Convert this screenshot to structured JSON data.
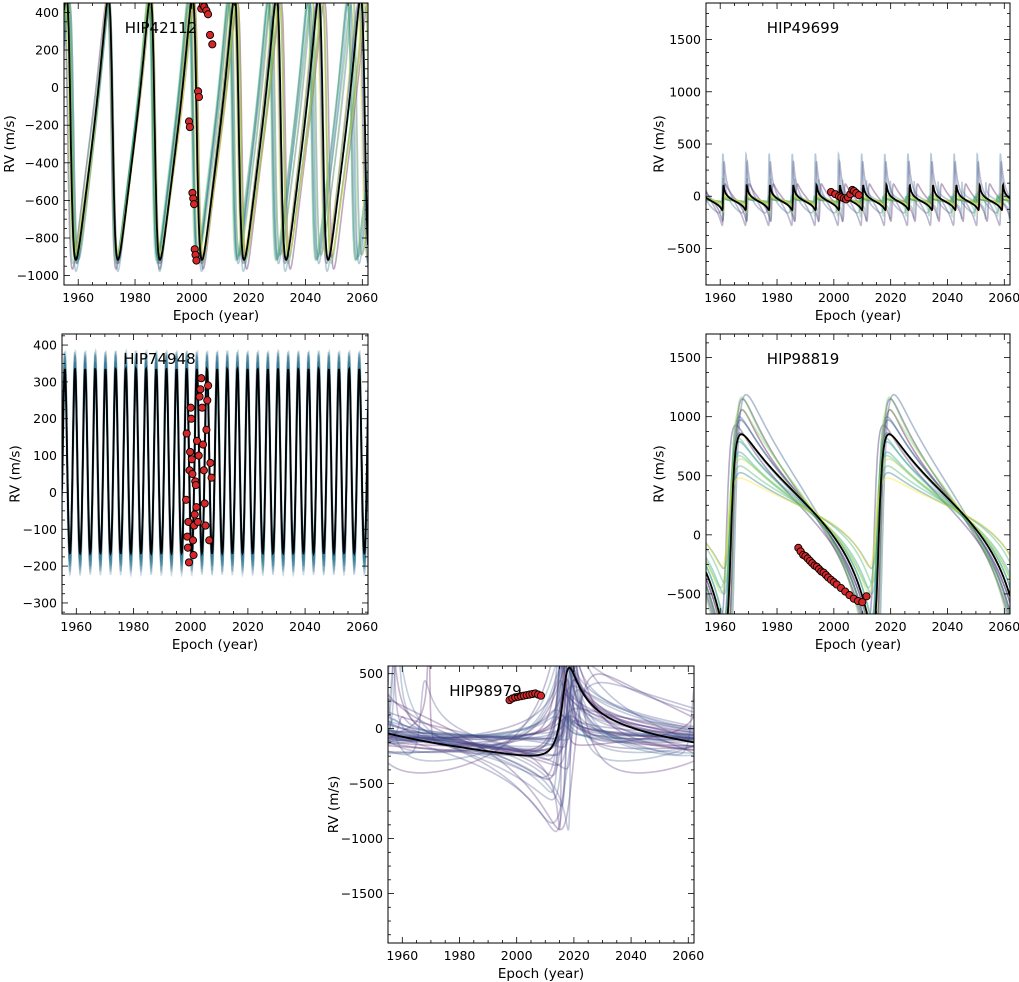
{
  "figure": {
    "colors": {
      "model_best": "#000000",
      "data_face": "#d62728",
      "data_edge": "#000000",
      "colormap": [
        "#440154",
        "#3b528b",
        "#21918c",
        "#5ec962",
        "#fde725"
      ]
    }
  },
  "chart_data": [
    {
      "type": "line",
      "title": "HIP42112",
      "xlabel": "Epoch (year)",
      "ylabel": "RV (m/s)",
      "xlim": [
        1955,
        2062
      ],
      "ylim": [
        -1050,
        450
      ],
      "xticks": [
        1960,
        1980,
        2000,
        2020,
        2040,
        2060
      ],
      "yticks": [
        -1000,
        -800,
        -600,
        -400,
        -200,
        0,
        200,
        400
      ],
      "model": {
        "kind": "keplerian",
        "period": 14.8,
        "K": 700,
        "offset": -270,
        "e": 0.45,
        "omega": 1.4,
        "tp": 1972.0
      },
      "orbit_draws": {
        "count": 16,
        "colormap": "viridis",
        "period_spread": 0.06,
        "K_spread": 0.03,
        "alpha": 0.35
      },
      "observations": {
        "epochs": [
          1999.0,
          1999.3,
          2000.2,
          2000.5,
          2000.8,
          2001.0,
          2001.3,
          2001.6,
          2002.2,
          2002.5,
          2003.3,
          2003.9,
          2004.4,
          2005.1,
          2005.7,
          2006.4,
          2007.2
        ],
        "rvs": [
          -180,
          -210,
          -560,
          -590,
          -620,
          -860,
          -890,
          -920,
          -20,
          -50,
          420,
          440,
          430,
          410,
          390,
          280,
          230
        ]
      },
      "grid": false,
      "legend": "none"
    },
    {
      "type": "line",
      "title": "HIP49699",
      "xlabel": "Epoch (year)",
      "ylabel": "RV (m/s)",
      "xlim": [
        1955,
        2062
      ],
      "ylim": [
        -850,
        1850
      ],
      "xticks": [
        1960,
        1980,
        2000,
        2020,
        2040,
        2060
      ],
      "yticks": [
        -500,
        0,
        500,
        1000,
        1500
      ],
      "model": {
        "kind": "keplerian",
        "period": 8.2,
        "K": 120,
        "offset": -40,
        "e": 0.82,
        "omega": 5.0,
        "tp": 1961.0
      },
      "orbit_draws": {
        "count": 14,
        "colormap": "viridis",
        "period_spread": 0.04,
        "K_spread": 1.6,
        "alpha": 0.35
      },
      "observations": {
        "epochs": [
          1999.0,
          2000.5,
          2001.8,
          2002.6,
          2003.5,
          2004.3,
          2005.0,
          2005.8,
          2006.5,
          2007.1,
          2007.9,
          2008.8
        ],
        "rvs": [
          40,
          20,
          0,
          -10,
          -20,
          -30,
          -10,
          20,
          60,
          50,
          30,
          10
        ]
      },
      "grid": false,
      "legend": "none"
    },
    {
      "type": "line",
      "title": "HIP74948",
      "xlabel": "Epoch (year)",
      "ylabel": "RV (m/s)",
      "xlim": [
        1955,
        2062
      ],
      "ylim": [
        -330,
        430
      ],
      "xticks": [
        1960,
        1980,
        2000,
        2020,
        2040,
        2060
      ],
      "yticks": [
        -300,
        -200,
        -100,
        0,
        100,
        200,
        300,
        400
      ],
      "model": {
        "kind": "keplerian",
        "period": 3.55,
        "K": 250,
        "offset": 70,
        "e": 0.06,
        "omega": 0.0,
        "tp": 1956.0
      },
      "orbit_draws": {
        "count": 16,
        "colormap": "viridis-cool",
        "period_spread": 0.0,
        "K_spread": 0.25,
        "alpha": 0.25
      },
      "observations": {
        "epochs": [
          1998.4,
          1998.6,
          1998.8,
          1999.0,
          1999.2,
          1999.4,
          1999.6,
          1999.8,
          2000.0,
          2000.2,
          2000.4,
          2000.6,
          2000.8,
          2001.0,
          2001.2,
          2001.4,
          2001.6,
          2001.8,
          2002.0,
          2002.2,
          2002.5,
          2002.8,
          2003.1,
          2003.4,
          2003.7,
          2004.0,
          2004.3,
          2004.6,
          2004.9,
          2005.2,
          2005.5,
          2005.8,
          2006.1,
          2006.5,
          2006.9,
          2007.3
        ],
        "rvs": [
          -20,
          160,
          -120,
          -150,
          -80,
          -190,
          60,
          110,
          230,
          200,
          90,
          50,
          -130,
          -170,
          -90,
          -60,
          30,
          20,
          -40,
          140,
          -80,
          100,
          260,
          280,
          310,
          230,
          130,
          60,
          -30,
          -90,
          170,
          250,
          290,
          -130,
          80,
          40
        ]
      },
      "grid": false,
      "legend": "none"
    },
    {
      "type": "line",
      "title": "HIP98819",
      "xlabel": "Epoch (year)",
      "ylabel": "RV (m/s)",
      "xlim": [
        1955,
        2062
      ],
      "ylim": [
        -670,
        1700
      ],
      "xticks": [
        1960,
        1980,
        2000,
        2020,
        2040,
        2060
      ],
      "yticks": [
        -500,
        0,
        500,
        1000,
        1500
      ],
      "model": {
        "kind": "keplerian",
        "period": 52.0,
        "K": 830,
        "offset": 195,
        "e": 0.68,
        "omega": 4.4,
        "tp": 1963.5
      },
      "orbit_draws": {
        "count": 18,
        "colormap": "viridis",
        "period_spread": 0.0,
        "K_spread": 0.55,
        "alpha": 0.4
      },
      "observations": {
        "epochs": [
          1987.5,
          1988.3,
          1989.2,
          1990.0,
          1990.8,
          1991.6,
          1992.4,
          1993.2,
          1994.0,
          1994.8,
          1995.6,
          1996.4,
          1997.2,
          1998.0,
          1999.0,
          2000.0,
          2001.0,
          2002.5,
          2004.0,
          2005.5,
          2007.0,
          2008.5,
          2010.0,
          2011.5
        ],
        "rvs": [
          -110,
          -140,
          -170,
          -180,
          -200,
          -220,
          -240,
          -260,
          -270,
          -290,
          -310,
          -320,
          -340,
          -360,
          -380,
          -400,
          -420,
          -450,
          -480,
          -510,
          -540,
          -560,
          -570,
          -520
        ]
      },
      "grid": false,
      "legend": "none"
    },
    {
      "type": "line",
      "title": "HIP98979",
      "xlabel": "Epoch (year)",
      "ylabel": "RV (m/s)",
      "xlim": [
        1955,
        2062
      ],
      "ylim": [
        -1950,
        570
      ],
      "xticks": [
        1960,
        1980,
        2000,
        2020,
        2040,
        2060
      ],
      "yticks": [
        -1500,
        -1000,
        -500,
        0,
        500
      ],
      "model": {
        "kind": "keplerian",
        "period": 92.0,
        "K": 400,
        "offset": -50,
        "e": 0.72,
        "omega": 5.5,
        "tp": 2017.0
      },
      "orbit_draws": {
        "count": 46,
        "colormap": "viridis-dark",
        "period_spread": 0.5,
        "K_spread": 1.2,
        "alpha": 0.3
      },
      "observations": {
        "epochs": [
          1997.5,
          1998.5,
          1999.5,
          2000.5,
          2001.5,
          2002.5,
          2003.5,
          2004.5,
          2005.5,
          2006.5,
          2007.5,
          2008.5
        ],
        "rvs": [
          260,
          275,
          285,
          290,
          295,
          300,
          305,
          310,
          315,
          320,
          310,
          300
        ]
      },
      "grid": false,
      "legend": "none"
    }
  ]
}
